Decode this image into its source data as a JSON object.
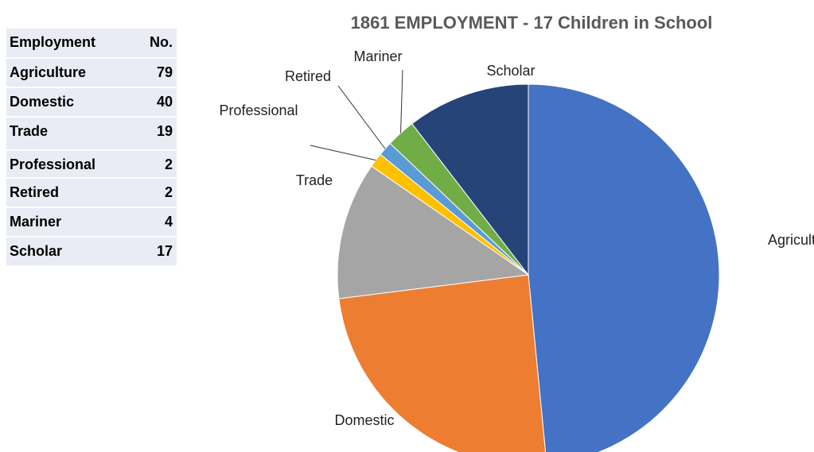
{
  "table": {
    "columns": [
      "Employment",
      "No."
    ]
  },
  "chart_data": {
    "type": "pie",
    "title": "1861 EMPLOYMENT - 17 Children in School",
    "categories": [
      "Agriculture",
      "Domestic",
      "Trade",
      "Professional",
      "Retired",
      "Mariner",
      "Scholar"
    ],
    "values": [
      79,
      40,
      19,
      2,
      2,
      4,
      17
    ],
    "colors": [
      "#4472c4",
      "#ed7d31",
      "#a5a5a5",
      "#ffc000",
      "#5b9bd5",
      "#70ad47",
      "#264478"
    ]
  }
}
